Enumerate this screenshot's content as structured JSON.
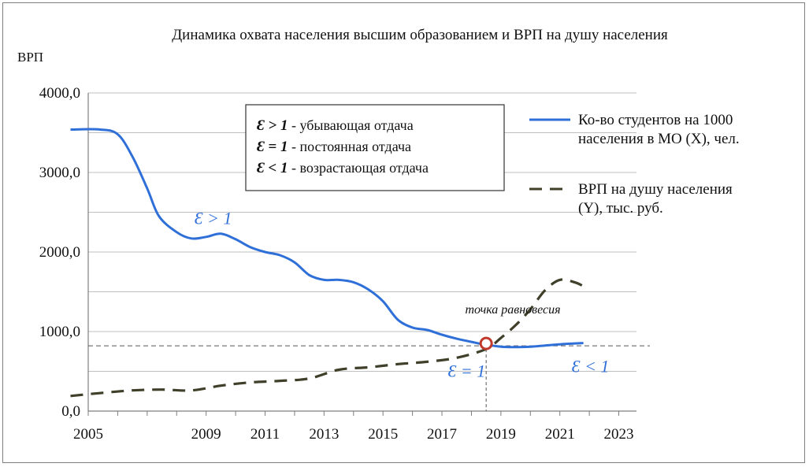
{
  "chart_data": {
    "type": "line",
    "title": "Динамика охвата населения высшим образованием и ВРП на душу населения",
    "ylabel": "ВРП",
    "ylim": [
      0,
      4000
    ],
    "grid": true,
    "y_ticks": [
      "0,0",
      "1000,0",
      "2000,0",
      "3000,0",
      "4000,0"
    ],
    "y_tick_values": [
      0,
      1000,
      2000,
      3000,
      4000
    ],
    "x_ticks": [
      "2005",
      "2009",
      "2011",
      "2013",
      "2015",
      "2017",
      "2019",
      "2021",
      "2023"
    ],
    "x_tick_positions": [
      2005,
      2007,
      2008,
      2009,
      2010,
      2011,
      2012,
      2013,
      2014
    ],
    "xlim": [
      2005,
      2014.3
    ],
    "legend_position": "right",
    "series": [
      {
        "name": "Ко-во студентов на 1000 населения в МО (X), чел.",
        "color": "#2f6fd8",
        "style": "solid",
        "points": [
          [
            2004.7,
            3540
          ],
          [
            2005.2,
            3540
          ],
          [
            2005.5,
            3480
          ],
          [
            2005.75,
            3200
          ],
          [
            2006.0,
            2800
          ],
          [
            2006.2,
            2450
          ],
          [
            2006.5,
            2250
          ],
          [
            2006.75,
            2170
          ],
          [
            2007.0,
            2190
          ],
          [
            2007.25,
            2230
          ],
          [
            2007.5,
            2160
          ],
          [
            2007.75,
            2060
          ],
          [
            2008.0,
            2000
          ],
          [
            2008.25,
            1960
          ],
          [
            2008.5,
            1870
          ],
          [
            2008.75,
            1710
          ],
          [
            2009.0,
            1650
          ],
          [
            2009.25,
            1650
          ],
          [
            2009.5,
            1620
          ],
          [
            2009.75,
            1530
          ],
          [
            2010.0,
            1380
          ],
          [
            2010.25,
            1150
          ],
          [
            2010.5,
            1050
          ],
          [
            2010.75,
            1020
          ],
          [
            2011.0,
            960
          ],
          [
            2011.25,
            910
          ],
          [
            2011.5,
            870
          ],
          [
            2011.7,
            840
          ],
          [
            2012.0,
            810
          ],
          [
            2012.25,
            805
          ],
          [
            2012.5,
            810
          ],
          [
            2012.75,
            825
          ],
          [
            2013.0,
            840
          ],
          [
            2013.25,
            850
          ],
          [
            2013.4,
            855
          ]
        ]
      },
      {
        "name": "ВРП на душу населения (Y), тыс. руб.",
        "color": "#3f3f2a",
        "style": "dashed",
        "points": [
          [
            2004.7,
            190
          ],
          [
            2005.25,
            230
          ],
          [
            2005.75,
            260
          ],
          [
            2006.25,
            270
          ],
          [
            2006.75,
            260
          ],
          [
            2007.25,
            320
          ],
          [
            2007.75,
            360
          ],
          [
            2008.25,
            380
          ],
          [
            2008.75,
            410
          ],
          [
            2009.25,
            520
          ],
          [
            2009.75,
            550
          ],
          [
            2010.25,
            590
          ],
          [
            2010.75,
            620
          ],
          [
            2011.25,
            670
          ],
          [
            2011.75,
            780
          ],
          [
            2012.0,
            920
          ],
          [
            2012.25,
            1080
          ],
          [
            2012.5,
            1280
          ],
          [
            2012.75,
            1520
          ],
          [
            2013.0,
            1650
          ],
          [
            2013.25,
            1620
          ],
          [
            2013.4,
            1570
          ]
        ]
      }
    ],
    "reference_line": {
      "y": 820
    },
    "equilibrium_point": {
      "x": 2011.75,
      "y": 850,
      "label": "точка равновесия"
    },
    "annotation_box": [
      {
        "symbol": "Ɛ > 1",
        "text": " - убывающая отдача"
      },
      {
        "symbol": "Ɛ = 1",
        "text": " - постоянная отдача"
      },
      {
        "symbol": "Ɛ < 1",
        "text": " - возрастающая отдача"
      }
    ],
    "region_labels": [
      {
        "text": "Ɛ > 1",
        "x": 2006.8,
        "y": 2350
      },
      {
        "text": "Ɛ = 1",
        "x": 2011.1,
        "y": 430
      },
      {
        "text": "Ɛ < 1",
        "x": 2013.2,
        "y": 490
      }
    ],
    "colors": {
      "students": "#2f6fd8",
      "grp": "#3f3f2a",
      "marker": "#c0392b",
      "grid": "#bfbfbf"
    }
  }
}
